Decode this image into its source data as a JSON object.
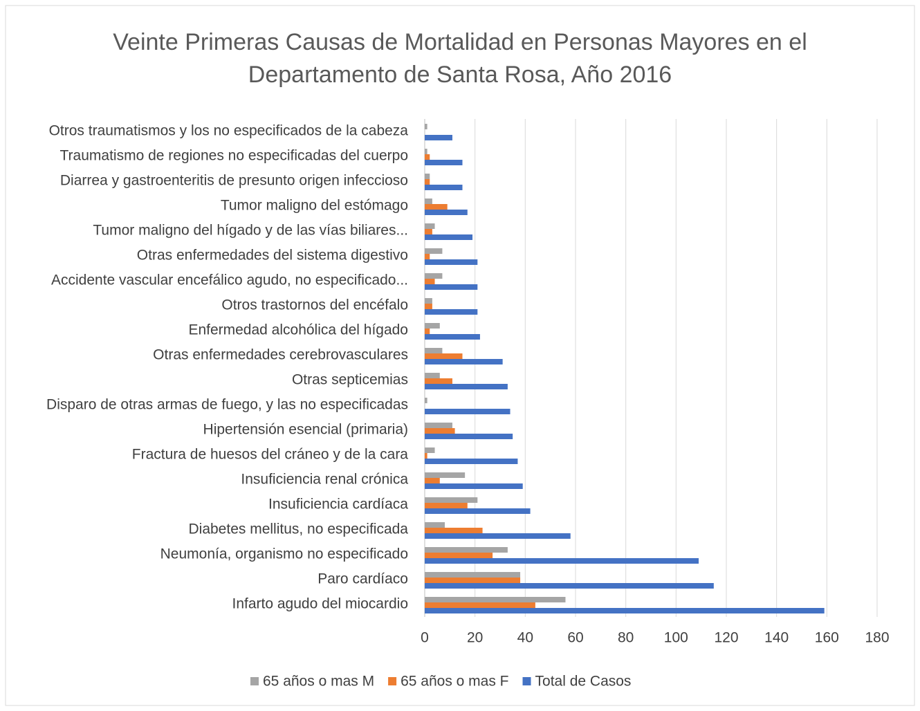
{
  "chart_data": {
    "type": "barh",
    "title": "Veinte Primeras Causas de Mortalidad en Personas Mayores en el Departamento de Santa Rosa, Año 2016",
    "categories": [
      "Otros traumatismos y los no especificados de la cabeza",
      "Traumatismo de regiones no especificadas del cuerpo",
      "Diarrea y gastroenteritis de presunto origen infeccioso",
      "Tumor maligno del estómago",
      "Tumor maligno del hígado y de las vías biliares...",
      "Otras enfermedades del sistema digestivo",
      "Accidente vascular encefálico agudo, no especificado...",
      "Otros trastornos del encéfalo",
      "Enfermedad alcohólica del hígado",
      "Otras enfermedades cerebrovasculares",
      "Otras septicemias",
      "Disparo de otras armas de fuego, y las no especificadas",
      "Hipertensión esencial (primaria)",
      "Fractura de huesos del cráneo y de la cara",
      "Insuficiencia renal crónica",
      "Insuficiencia cardíaca",
      "Diabetes mellitus, no especificada",
      "Neumonía, organismo no especificado",
      "Paro cardíaco",
      "Infarto agudo del miocardio"
    ],
    "series": [
      {
        "name": "65 años o mas M",
        "color": "#a5a5a5",
        "values": [
          1,
          1,
          2,
          3,
          4,
          7,
          7,
          3,
          6,
          7,
          6,
          1,
          11,
          4,
          16,
          21,
          8,
          33,
          38,
          56
        ]
      },
      {
        "name": "65 años o mas F",
        "color": "#ed7d31",
        "values": [
          0,
          2,
          2,
          9,
          3,
          2,
          4,
          3,
          2,
          15,
          11,
          0,
          12,
          1,
          6,
          17,
          23,
          27,
          38,
          44
        ]
      },
      {
        "name": "Total de Casos",
        "color": "#4472c4",
        "values": [
          11,
          15,
          15,
          17,
          19,
          21,
          21,
          21,
          22,
          31,
          33,
          34,
          35,
          37,
          39,
          42,
          58,
          109,
          115,
          159
        ]
      }
    ],
    "xlim": [
      0,
      180
    ],
    "xticks": [
      0,
      20,
      40,
      60,
      80,
      100,
      120,
      140,
      160,
      180
    ],
    "grid": true,
    "legend": "bottom"
  }
}
